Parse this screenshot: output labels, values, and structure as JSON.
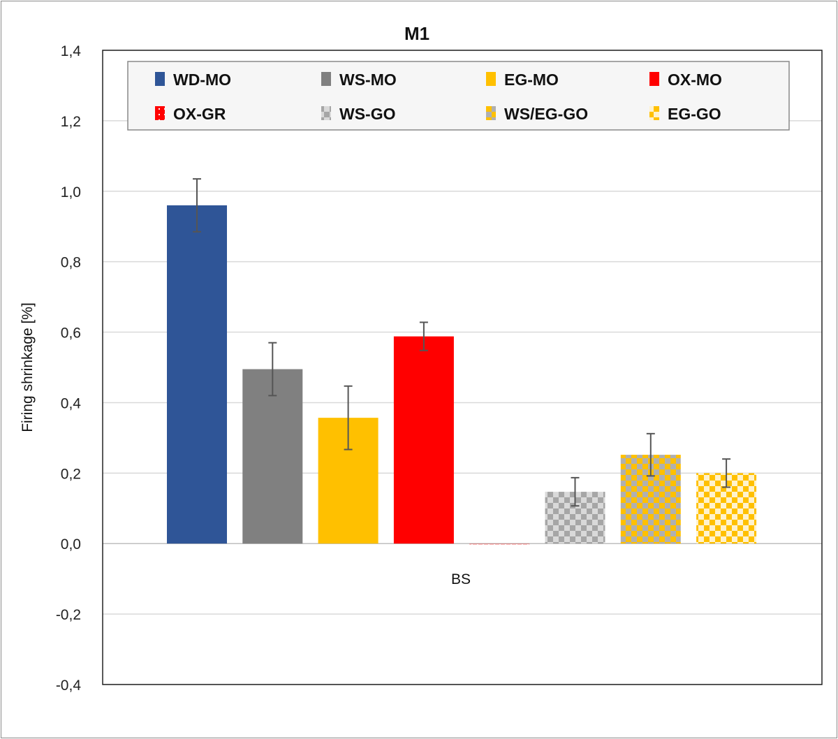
{
  "chart_data": {
    "type": "bar",
    "title": "M1",
    "xlabel": "",
    "ylabel": "Firing shrinkage [%]",
    "ylim": [
      -0.4,
      1.4
    ],
    "yticks": [
      "-0,4",
      "-0,2",
      "0,0",
      "0,2",
      "0,4",
      "0,6",
      "0,8",
      "1,0",
      "1,2",
      "1,4"
    ],
    "ytick_values": [
      -0.4,
      -0.2,
      0,
      0.2,
      0.4,
      0.6,
      0.8,
      1.0,
      1.2,
      1.4
    ],
    "categories": [
      "BS"
    ],
    "grid": true,
    "legend_position": "top",
    "series": [
      {
        "name": "WD-MO",
        "values": [
          0.96
        ],
        "error": [
          0.075
        ],
        "color": "#2F5597",
        "pattern": "solid"
      },
      {
        "name": "WS-MO",
        "values": [
          0.495
        ],
        "error": [
          0.075
        ],
        "color": "#808080",
        "pattern": "solid"
      },
      {
        "name": "EG-MO",
        "values": [
          0.357
        ],
        "error": [
          0.09
        ],
        "color": "#FFC000",
        "pattern": "solid"
      },
      {
        "name": "OX-MO",
        "values": [
          0.588
        ],
        "error": [
          0.04
        ],
        "color": "#FF0000",
        "pattern": "solid"
      },
      {
        "name": "OX-GR",
        "values": [
          -0.002
        ],
        "error": [
          0
        ],
        "color": "#FF0000",
        "pattern": "dots"
      },
      {
        "name": "WS-GO",
        "values": [
          0.147
        ],
        "error": [
          0.04
        ],
        "color": "#A6A6A6",
        "color2": "#D9D9D9",
        "pattern": "checker"
      },
      {
        "name": "WS/EG-GO",
        "values": [
          0.252
        ],
        "error": [
          0.06
        ],
        "color": "#FFC000",
        "color2": "#B0B0B0",
        "pattern": "checker"
      },
      {
        "name": "EG-GO",
        "values": [
          0.2
        ],
        "error": [
          0.04
        ],
        "color": "#FFC000",
        "color2": "#FFF2CC",
        "pattern": "checker"
      }
    ]
  }
}
